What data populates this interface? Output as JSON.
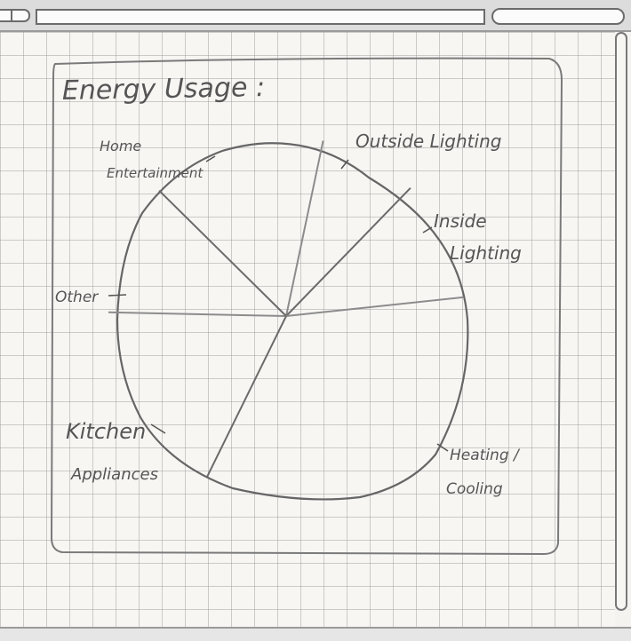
{
  "chart_data": {
    "type": "pie",
    "title": "Energy Usage :",
    "categories": [
      "Outside Lighting",
      "Inside Lighting",
      "Heating / Cooling",
      "Kitchen Appliances",
      "Other",
      "Home Entertainment"
    ],
    "values": [
      9,
      11,
      34,
      18,
      12,
      16
    ],
    "legend": "none"
  },
  "labels": {
    "title": "Energy Usage :",
    "home": "Home",
    "entertainment": "Entertainment",
    "outside": "Outside Lighting",
    "inside1": "Inside",
    "inside2": "Lighting",
    "other": "Other",
    "kitchen": "Kitchen",
    "appliances": "Appliances",
    "heating": "Heating /",
    "cooling": "Cooling"
  }
}
